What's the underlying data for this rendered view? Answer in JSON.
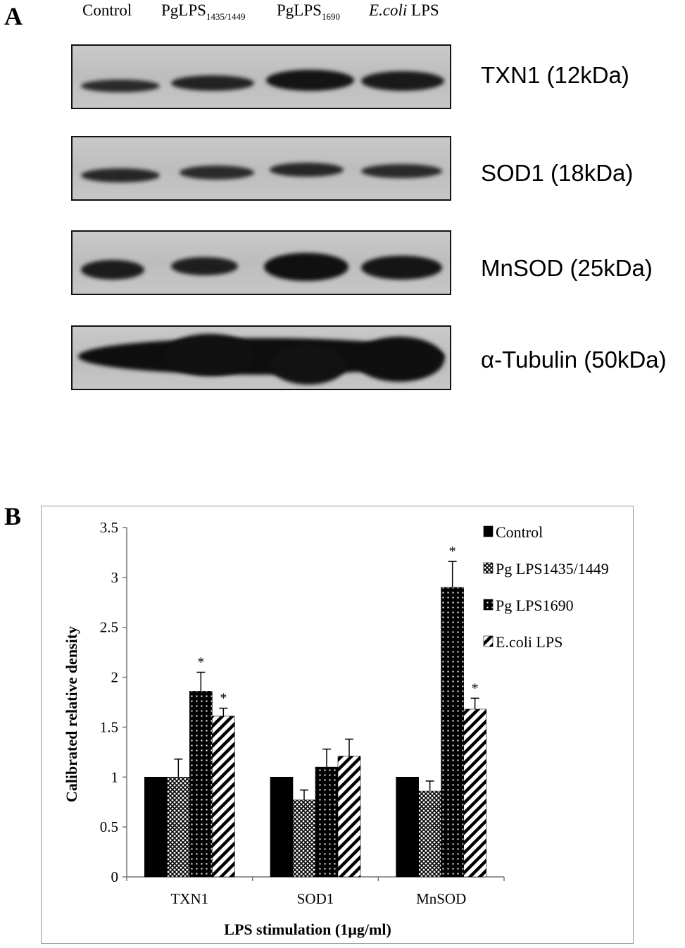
{
  "panel_a": {
    "letter": "A",
    "lanes": [
      {
        "name": "Control",
        "sub": "",
        "italic": ""
      },
      {
        "name": "PgLPS",
        "sub": "1435/1449",
        "italic": ""
      },
      {
        "name": "PgLPS",
        "sub": "1690",
        "italic": ""
      },
      {
        "name": " LPS",
        "sub": "",
        "italic": "E.coli"
      }
    ],
    "blots": [
      {
        "label": "TXN1 (12kDa)"
      },
      {
        "label": "SOD1 (18kDa)"
      },
      {
        "label": "MnSOD (25kDa)"
      },
      {
        "label": "α-Tubulin (50kDa)"
      }
    ]
  },
  "panel_b": {
    "letter": "B"
  },
  "chart_data": {
    "type": "bar",
    "categories": [
      "TXN1",
      "SOD1",
      "MnSOD"
    ],
    "series": [
      {
        "name": "Control",
        "pattern": "solid",
        "values": [
          1.0,
          1.0,
          1.0
        ],
        "errors": [
          0,
          0,
          0
        ],
        "significant": [
          false,
          false,
          false
        ]
      },
      {
        "name": "Pg LPS1435/1449",
        "pattern": "crosshatch",
        "values": [
          1.0,
          0.77,
          0.86
        ],
        "errors": [
          0.18,
          0.1,
          0.1
        ],
        "significant": [
          false,
          false,
          false
        ]
      },
      {
        "name": "Pg LPS1690",
        "pattern": "dots",
        "values": [
          1.86,
          1.1,
          2.9
        ],
        "errors": [
          0.19,
          0.18,
          0.26
        ],
        "significant": [
          true,
          false,
          true
        ]
      },
      {
        "name": "E.coli LPS",
        "pattern": "diagonal",
        "values": [
          1.61,
          1.21,
          1.68
        ],
        "errors": [
          0.08,
          0.17,
          0.11
        ],
        "significant": [
          true,
          false,
          true
        ]
      }
    ],
    "significance_marker": "*",
    "xlabel": "LPS stimulation (1µg/ml)",
    "ylabel": "Calibrated relative density",
    "ylim": [
      0,
      3.5
    ],
    "yticks": [
      "0",
      "0.5",
      "1",
      "1.5",
      "2",
      "2.5",
      "3",
      "3.5"
    ],
    "yticks_values": [
      0,
      0.5,
      1,
      1.5,
      2,
      2.5,
      3,
      3.5
    ],
    "grid": false,
    "legend_position": "top-right"
  }
}
